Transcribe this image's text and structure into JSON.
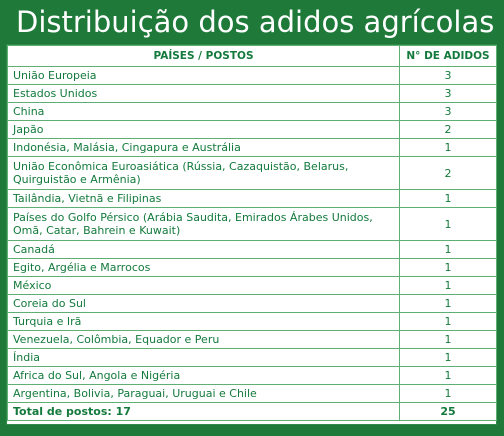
{
  "title": "Distribuição dos adidos agrícolas",
  "table": {
    "headers": [
      "PAÍSES / POSTOS",
      "N° DE ADIDOS"
    ],
    "rows": [
      {
        "country": "União Europeia",
        "count": "3"
      },
      {
        "country": "Estados Unidos",
        "count": "3"
      },
      {
        "country": "China",
        "count": "3"
      },
      {
        "country": "Japão",
        "count": "2"
      },
      {
        "country": "Indonésia, Malásia, Cingapura e Austrália",
        "count": "1"
      },
      {
        "country": "União Econômica Euroasiática (Rússia, Cazaquistão, Belarus, Quirguistão e Armênia)",
        "count": "2"
      },
      {
        "country": "Tailândia, Vietnã e Filipinas",
        "count": "1"
      },
      {
        "country": "Países do Golfo Pérsico (Arábia Saudita, Emirados Árabes Unidos, Omã, Catar, Bahrein e Kuwait)",
        "count": "1"
      },
      {
        "country": "Canadá",
        "count": "1"
      },
      {
        "country": "Egito, Argélia e Marrocos",
        "count": "1"
      },
      {
        "country": "México",
        "count": "1"
      },
      {
        "country": "Coreia do Sul",
        "count": "1"
      },
      {
        "country": "Turquia e Irã",
        "count": "1"
      },
      {
        "country": "Venezuela, Colômbia, Equador e Peru",
        "count": "1"
      },
      {
        "country": "Índia",
        "count": "1"
      },
      {
        "country": "Africa do Sul, Angola e Nigéria",
        "count": "1"
      },
      {
        "country": "Argentina, Bolivia, Paraguai, Uruguai e Chile",
        "count": "1"
      }
    ],
    "total": {
      "label": "Total de postos: 17",
      "count": "25"
    }
  },
  "colors": {
    "background": "#1f7a3a",
    "text": "#137a3c",
    "border": "#5fae74"
  }
}
